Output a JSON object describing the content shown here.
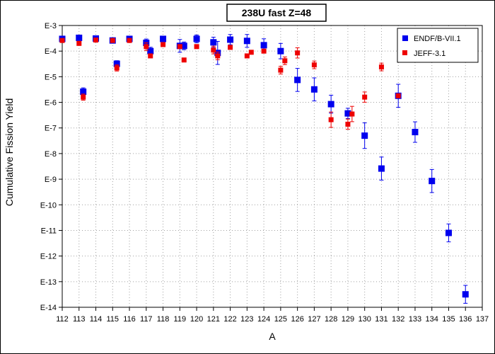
{
  "chart_data": {
    "type": "scatter",
    "title": "238U fast Z=48",
    "xlabel": "A",
    "ylabel": "Cumulative Fission Yield",
    "xlim": [
      112,
      137
    ],
    "ylim_log10": [
      -14,
      -3
    ],
    "yscale": "log",
    "grid": true,
    "legend_position": "top-right",
    "x_ticks": [
      "112",
      "113",
      "114",
      "115",
      "116",
      "117",
      "118",
      "119",
      "120",
      "121",
      "122",
      "123",
      "124",
      "125",
      "126",
      "127",
      "128",
      "129",
      "130",
      "131",
      "132",
      "133",
      "134",
      "135",
      "136",
      "137"
    ],
    "y_ticks": [
      {
        "label": "E-3",
        "exp": -3
      },
      {
        "label": "E-4",
        "exp": -4
      },
      {
        "label": "E-5",
        "exp": -5
      },
      {
        "label": "E-6",
        "exp": -6
      },
      {
        "label": "E-7",
        "exp": -7
      },
      {
        "label": "E-8",
        "exp": -8
      },
      {
        "label": "E-9",
        "exp": -9
      },
      {
        "label": "E-10",
        "exp": -10
      },
      {
        "label": "E-11",
        "exp": -11
      },
      {
        "label": "E-12",
        "exp": -12
      },
      {
        "label": "E-13",
        "exp": -13
      },
      {
        "label": "E-14",
        "exp": -14
      }
    ],
    "series": [
      {
        "name": "ENDF/B-VII.1",
        "color": "#0000ee",
        "marker": "square",
        "points": [
          {
            "x": 112,
            "y": 0.0003
          },
          {
            "x": 113,
            "y": 0.00033
          },
          {
            "x": 113.25,
            "y": 2.6e-06,
            "err": 0.15
          },
          {
            "x": 114,
            "y": 0.00031
          },
          {
            "x": 115,
            "y": 0.00026
          },
          {
            "x": 115.25,
            "y": 3.2e-05,
            "err": 0.12
          },
          {
            "x": 116,
            "y": 0.0003
          },
          {
            "x": 117,
            "y": 0.00021,
            "err": 0.15
          },
          {
            "x": 117.25,
            "y": 0.0001,
            "err": 0.15
          },
          {
            "x": 118,
            "y": 0.0003
          },
          {
            "x": 119,
            "y": 0.00016,
            "err": 0.25
          },
          {
            "x": 119.25,
            "y": 0.00016,
            "err": 0.15
          },
          {
            "x": 120,
            "y": 0.0003,
            "err": 0.15
          },
          {
            "x": 121,
            "y": 0.00022,
            "err": 0.2
          },
          {
            "x": 121.25,
            "y": 8.5e-05,
            "err": 0.45
          },
          {
            "x": 122,
            "y": 0.00028,
            "err": 0.2
          },
          {
            "x": 123,
            "y": 0.00025,
            "err": 0.25
          },
          {
            "x": 124,
            "y": 0.00017,
            "err": 0.25
          },
          {
            "x": 125,
            "y": 0.0001,
            "err": 0.3
          },
          {
            "x": 126,
            "y": 7.5e-06,
            "err": 0.45
          },
          {
            "x": 127,
            "y": 3.2e-06,
            "err": 0.45
          },
          {
            "x": 128,
            "y": 8.5e-07,
            "err": 0.35
          },
          {
            "x": 129,
            "y": 3.7e-07,
            "err": 0.2
          },
          {
            "x": 130,
            "y": 5e-08,
            "err": 0.5
          },
          {
            "x": 131,
            "y": 2.6e-09,
            "err": 0.45
          },
          {
            "x": 132,
            "y": 1.8e-06,
            "err": 0.45
          },
          {
            "x": 133,
            "y": 6.9e-08,
            "err": 0.4
          },
          {
            "x": 134,
            "y": 8.5e-10,
            "err": 0.45
          },
          {
            "x": 135,
            "y": 8e-12,
            "err": 0.35
          },
          {
            "x": 136,
            "y": 3.2e-14,
            "err": 0.35
          }
        ]
      },
      {
        "name": "JEFF-3.1",
        "color": "#ee0000",
        "marker": "square",
        "points": [
          {
            "x": 112,
            "y": 0.00026
          },
          {
            "x": 113,
            "y": 0.0002
          },
          {
            "x": 113.25,
            "y": 1.6e-06,
            "err": 0.12
          },
          {
            "x": 114,
            "y": 0.00027
          },
          {
            "x": 115,
            "y": 0.00026
          },
          {
            "x": 115.25,
            "y": 2.2e-05,
            "err": 0.12
          },
          {
            "x": 116,
            "y": 0.00026
          },
          {
            "x": 117,
            "y": 0.00015,
            "err": 0.15
          },
          {
            "x": 117.25,
            "y": 6.5e-05
          },
          {
            "x": 118,
            "y": 0.00018
          },
          {
            "x": 119,
            "y": 0.00015
          },
          {
            "x": 119.25,
            "y": 4.5e-05
          },
          {
            "x": 120,
            "y": 0.00015
          },
          {
            "x": 121,
            "y": 0.00011,
            "err": 0.15
          },
          {
            "x": 121.25,
            "y": 6.5e-05,
            "err": 0.15
          },
          {
            "x": 122,
            "y": 0.00014
          },
          {
            "x": 123,
            "y": 6.5e-05
          },
          {
            "x": 123.25,
            "y": 9e-05
          },
          {
            "x": 124,
            "y": 0.0001
          },
          {
            "x": 125,
            "y": 1.8e-05,
            "err": 0.15
          },
          {
            "x": 125.25,
            "y": 4.2e-05,
            "err": 0.15
          },
          {
            "x": 126,
            "y": 8.5e-05,
            "err": 0.2
          },
          {
            "x": 127,
            "y": 2.9e-05,
            "err": 0.15
          },
          {
            "x": 128,
            "y": 2.1e-07,
            "err": 0.3
          },
          {
            "x": 129,
            "y": 1.4e-07,
            "err": 0.2
          },
          {
            "x": 129.25,
            "y": 3.5e-07,
            "err": 0.3
          },
          {
            "x": 130,
            "y": 1.6e-06,
            "err": 0.2
          },
          {
            "x": 131,
            "y": 2.4e-05,
            "err": 0.15
          },
          {
            "x": 132,
            "y": 1.8e-06
          }
        ]
      }
    ]
  }
}
